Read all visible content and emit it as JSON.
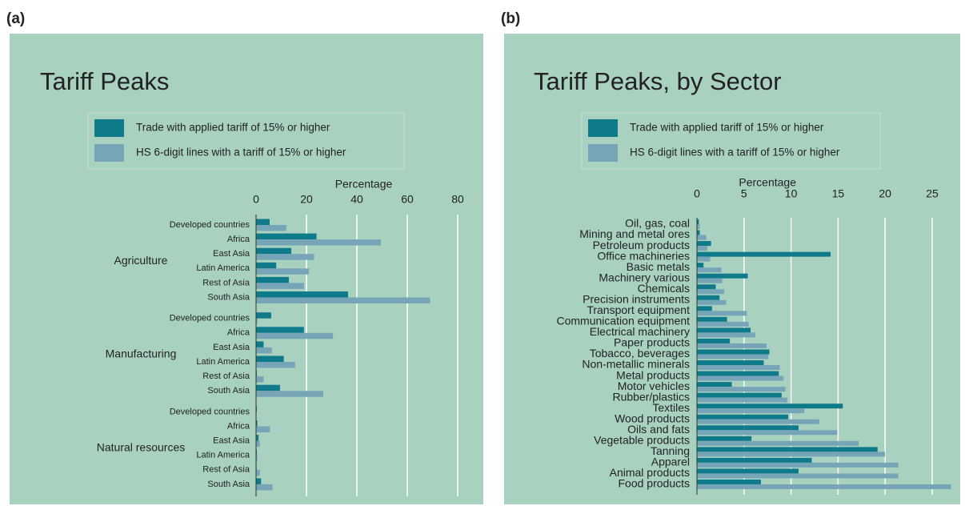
{
  "chart_data": [
    {
      "type": "bar",
      "orientation": "horizontal",
      "panel_label": "(a)",
      "title": "Tariff Peaks",
      "xlabel": "Percentage",
      "groups": [
        "Agriculture",
        "Manufacturing",
        "Natural resources"
      ],
      "categories": [
        "Developed countries",
        "Africa",
        "East Asia",
        "Latin America",
        "Rest of Asia",
        "South Asia",
        "Developed countries",
        "Africa",
        "East Asia",
        "Latin America",
        "Rest of Asia",
        "South Asia",
        "Developed countries",
        "Africa",
        "East Asia",
        "Latin America",
        "Rest of Asia",
        "South Asia"
      ],
      "series": [
        {
          "name": "Trade with applied tariff of 15% or higher",
          "color": "#0f7a8a",
          "values": [
            5.4,
            24,
            14,
            8,
            13,
            36.5,
            6,
            19,
            3,
            11,
            0.3,
            9.5,
            0.3,
            0.5,
            1,
            0.3,
            0.2,
            2
          ]
        },
        {
          "name": "HS 6-digit lines with a tariff of 15% or higher",
          "color": "#77a5b8",
          "values": [
            12,
            49.5,
            23,
            21,
            19,
            69,
            0.5,
            30.5,
            6.3,
            15.5,
            3,
            26.7,
            0.2,
            5.5,
            1.5,
            0.5,
            1.5,
            6.5
          ]
        }
      ],
      "xlim": [
        0,
        80
      ],
      "xticks": [
        0,
        20,
        40,
        60,
        80
      ],
      "grid": true
    },
    {
      "type": "bar",
      "orientation": "horizontal",
      "panel_label": "(b)",
      "title": "Tariff Peaks, by Sector",
      "xlabel": "Percentage",
      "categories": [
        "Oil, gas, coal",
        "Mining and metal ores",
        "Petroleum products",
        "Office machineries",
        "Basic metals",
        "Machinery various",
        "Chemicals",
        "Precision instruments",
        "Transport equipment",
        "Communication equipment",
        "Electrical machinery",
        "Paper products",
        "Tobacco, beverages",
        "Non-metallic minerals",
        "Metal products",
        "Motor vehicles",
        "Rubber/plastics",
        "Textiles",
        "Wood products",
        "Oils and fats",
        "Vegetable products",
        "Tanning",
        "Apparel",
        "Animal products",
        "Food products"
      ],
      "series": [
        {
          "name": "Trade with applied tariff of 15% or higher",
          "color": "#0f7a8a",
          "values": [
            0.2,
            0.3,
            1.5,
            14.2,
            0.7,
            5.4,
            2,
            2.4,
            1.6,
            3.2,
            5.7,
            3.5,
            7.7,
            7.1,
            8.7,
            3.7,
            9,
            15.5,
            9.7,
            10.8,
            5.8,
            19.2,
            12.2,
            10.8,
            6.8
          ]
        },
        {
          "name": "HS 6-digit lines with a tariff of 15% or higher",
          "color": "#77a5b8",
          "values": [
            0.3,
            1,
            1.1,
            1.4,
            2.6,
            2.7,
            2.9,
            3.1,
            5.3,
            5.5,
            6.2,
            7.4,
            7.6,
            8.8,
            9.2,
            9.4,
            9.6,
            11.4,
            13,
            14.9,
            17.2,
            20,
            21.4,
            21.4,
            27
          ]
        }
      ],
      "xlim": [
        0,
        27
      ],
      "xticks": [
        0,
        5,
        10,
        15,
        20,
        25
      ],
      "grid": true
    }
  ]
}
